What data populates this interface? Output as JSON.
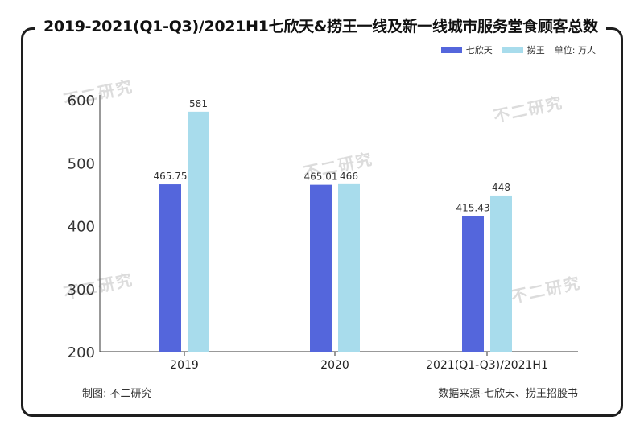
{
  "title": "2019-2021(Q1-Q3)/2021H1七欣天&捞王一线及新一线城市服务堂食顾客总数",
  "legend": {
    "unit": "单位: 万人"
  },
  "footer": {
    "author": "制图: 不二研究",
    "source": "数据来源-七欣天、捞王招股书"
  },
  "watermark": {
    "text": "不二研究"
  },
  "colors": {
    "qixintian": "#5466dc",
    "laowang": "#a8dcec"
  },
  "chart_data": {
    "type": "bar",
    "categories": [
      "2019",
      "2020",
      "2021(Q1-Q3)/2021H1"
    ],
    "series": [
      {
        "name": "七欣天",
        "values": [
          465.75,
          465.01,
          415.43
        ],
        "labels": [
          "465.75",
          "465.01",
          "415.43"
        ]
      },
      {
        "name": "捞王",
        "values": [
          581,
          466,
          448
        ],
        "labels": [
          "581",
          "466",
          "448"
        ]
      }
    ],
    "yticks": [
      "200",
      "300",
      "400",
      "500",
      "600"
    ],
    "ylim": [
      200,
      600
    ],
    "legend_position": "top-right",
    "grid": false
  }
}
